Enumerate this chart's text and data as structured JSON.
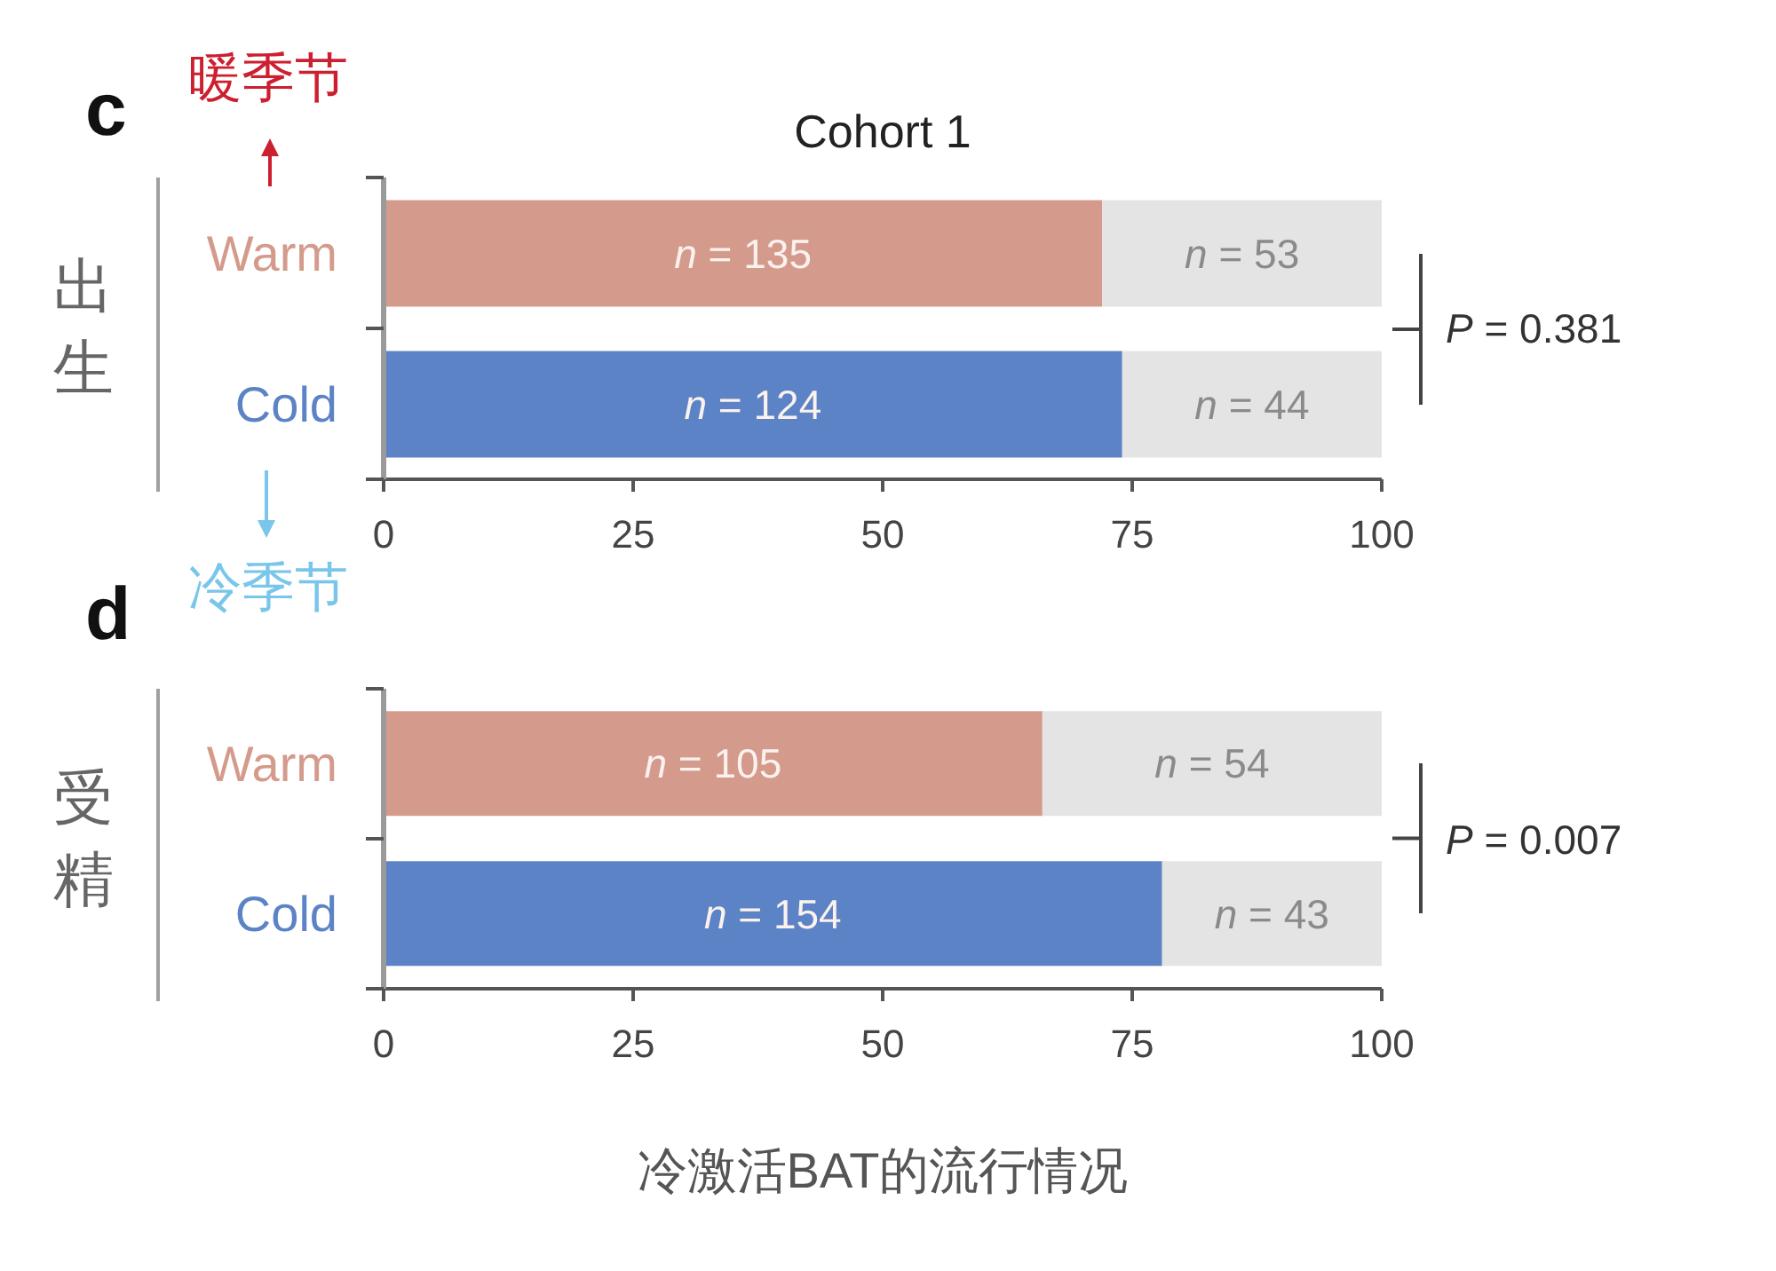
{
  "chart_data": [
    {
      "type": "bar",
      "orientation": "horizontal",
      "stacked": true,
      "title": "Cohort 1",
      "ylabel": "出生",
      "categories": [
        "Warm",
        "Cold"
      ],
      "series": [
        {
          "colors": [
            "#d49b8c",
            "#5b83c5"
          ],
          "values": [
            72,
            74
          ]
        },
        {
          "color": "#e4e4e4",
          "values": [
            28,
            26
          ]
        }
      ],
      "xlim": [
        0,
        100
      ],
      "xticks": [
        0,
        25,
        50,
        75,
        100
      ],
      "annotations": [
        "c",
        "暖季节",
        "冷季节",
        "P = 0.381",
        "n = 135",
        "n = 53",
        "n = 124",
        "n = 44"
      ]
    },
    {
      "type": "bar",
      "orientation": "horizontal",
      "stacked": true,
      "ylabel": "受精",
      "xlabel": "冷激活BAT的流行情况",
      "categories": [
        "Warm",
        "Cold"
      ],
      "series": [
        {
          "colors": [
            "#d49b8c",
            "#5b83c5"
          ],
          "values": [
            66,
            78
          ]
        },
        {
          "color": "#e4e4e4",
          "values": [
            34,
            22
          ]
        }
      ],
      "xlim": [
        0,
        100
      ],
      "xticks": [
        0,
        25,
        50,
        75,
        100
      ],
      "annotations": [
        "d",
        "P = 0.007",
        "n = 105",
        "n = 54",
        "n = 154",
        "n = 43"
      ]
    }
  ]
}
